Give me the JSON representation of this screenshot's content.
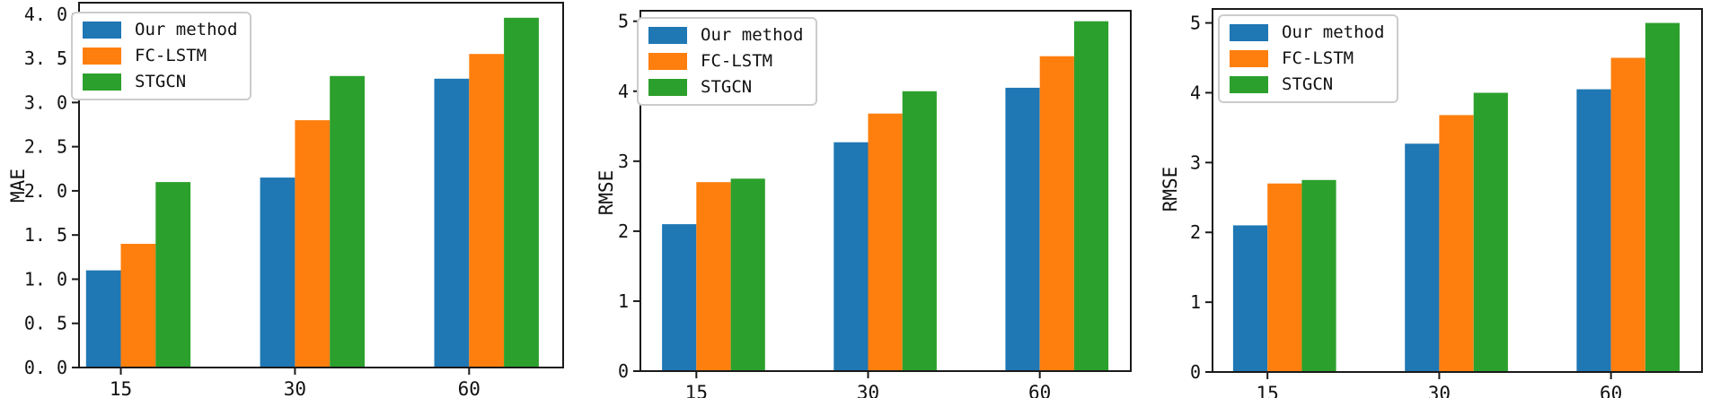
{
  "legend": {
    "entries": [
      "Our method",
      "FC-LSTM",
      "STGCN"
    ]
  },
  "chart_data": [
    {
      "type": "bar",
      "title": "",
      "xlabel": "",
      "ylabel": "MAE",
      "categories": [
        "15",
        "30",
        "60"
      ],
      "series": [
        {
          "name": "Our method",
          "color": "#1f77b4",
          "values": [
            1.1,
            2.15,
            3.27
          ]
        },
        {
          "name": "FC-LSTM",
          "color": "#ff7f0e",
          "values": [
            1.4,
            2.8,
            3.55
          ]
        },
        {
          "name": "STGCN",
          "color": "#2ca02c",
          "values": [
            2.1,
            3.3,
            3.96
          ]
        }
      ],
      "ylim": [
        0,
        4.13
      ],
      "xlim": [
        -0.24,
        2.54
      ],
      "ytick_values": [
        0,
        0.5,
        1,
        1.5,
        2,
        2.5,
        3,
        3.5,
        4
      ],
      "ytick_labels": [
        "0. 0",
        "0. 5",
        "1. 0",
        "1. 5",
        "2. 0",
        "2. 5",
        "3. 0",
        "3. 5",
        "4. 0"
      ],
      "bar_width": 0.2,
      "grid": false,
      "legend_position": "upper left"
    },
    {
      "type": "bar",
      "title": "",
      "xlabel": "",
      "ylabel": "RMSE",
      "categories": [
        "15",
        "30",
        "60"
      ],
      "series": [
        {
          "name": "Our method",
          "color": "#1f77b4",
          "values": [
            2.1,
            3.27,
            4.05
          ]
        },
        {
          "name": "FC-LSTM",
          "color": "#ff7f0e",
          "values": [
            2.7,
            3.68,
            4.5
          ]
        },
        {
          "name": "STGCN",
          "color": "#2ca02c",
          "values": [
            2.75,
            4.0,
            5.0
          ]
        }
      ],
      "ylim": [
        0,
        5.15
      ],
      "xlim": [
        -0.326,
        2.53
      ],
      "ytick_values": [
        0,
        1,
        2,
        3,
        4,
        5
      ],
      "ytick_labels": [
        "0",
        "1",
        "2",
        "3",
        "4",
        "5"
      ],
      "bar_width": 0.2,
      "grid": false,
      "legend_position": "upper left"
    },
    {
      "type": "bar",
      "title": "",
      "xlabel": "",
      "ylabel": "RMSE",
      "categories": [
        "15",
        "30",
        "60"
      ],
      "series": [
        {
          "name": "Our method",
          "color": "#1f77b4",
          "values": [
            2.1,
            3.27,
            4.05
          ]
        },
        {
          "name": "FC-LSTM",
          "color": "#ff7f0e",
          "values": [
            2.7,
            3.68,
            4.5
          ]
        },
        {
          "name": "STGCN",
          "color": "#2ca02c",
          "values": [
            2.75,
            4.0,
            5.0
          ]
        }
      ],
      "ylim": [
        0,
        5.2
      ],
      "xlim": [
        -0.32,
        2.53
      ],
      "ytick_values": [
        0,
        1,
        2,
        3,
        4,
        5
      ],
      "ytick_labels": [
        "0",
        "1",
        "2",
        "3",
        "4",
        "5"
      ],
      "bar_width": 0.2,
      "grid": false,
      "legend_position": "upper left"
    }
  ]
}
